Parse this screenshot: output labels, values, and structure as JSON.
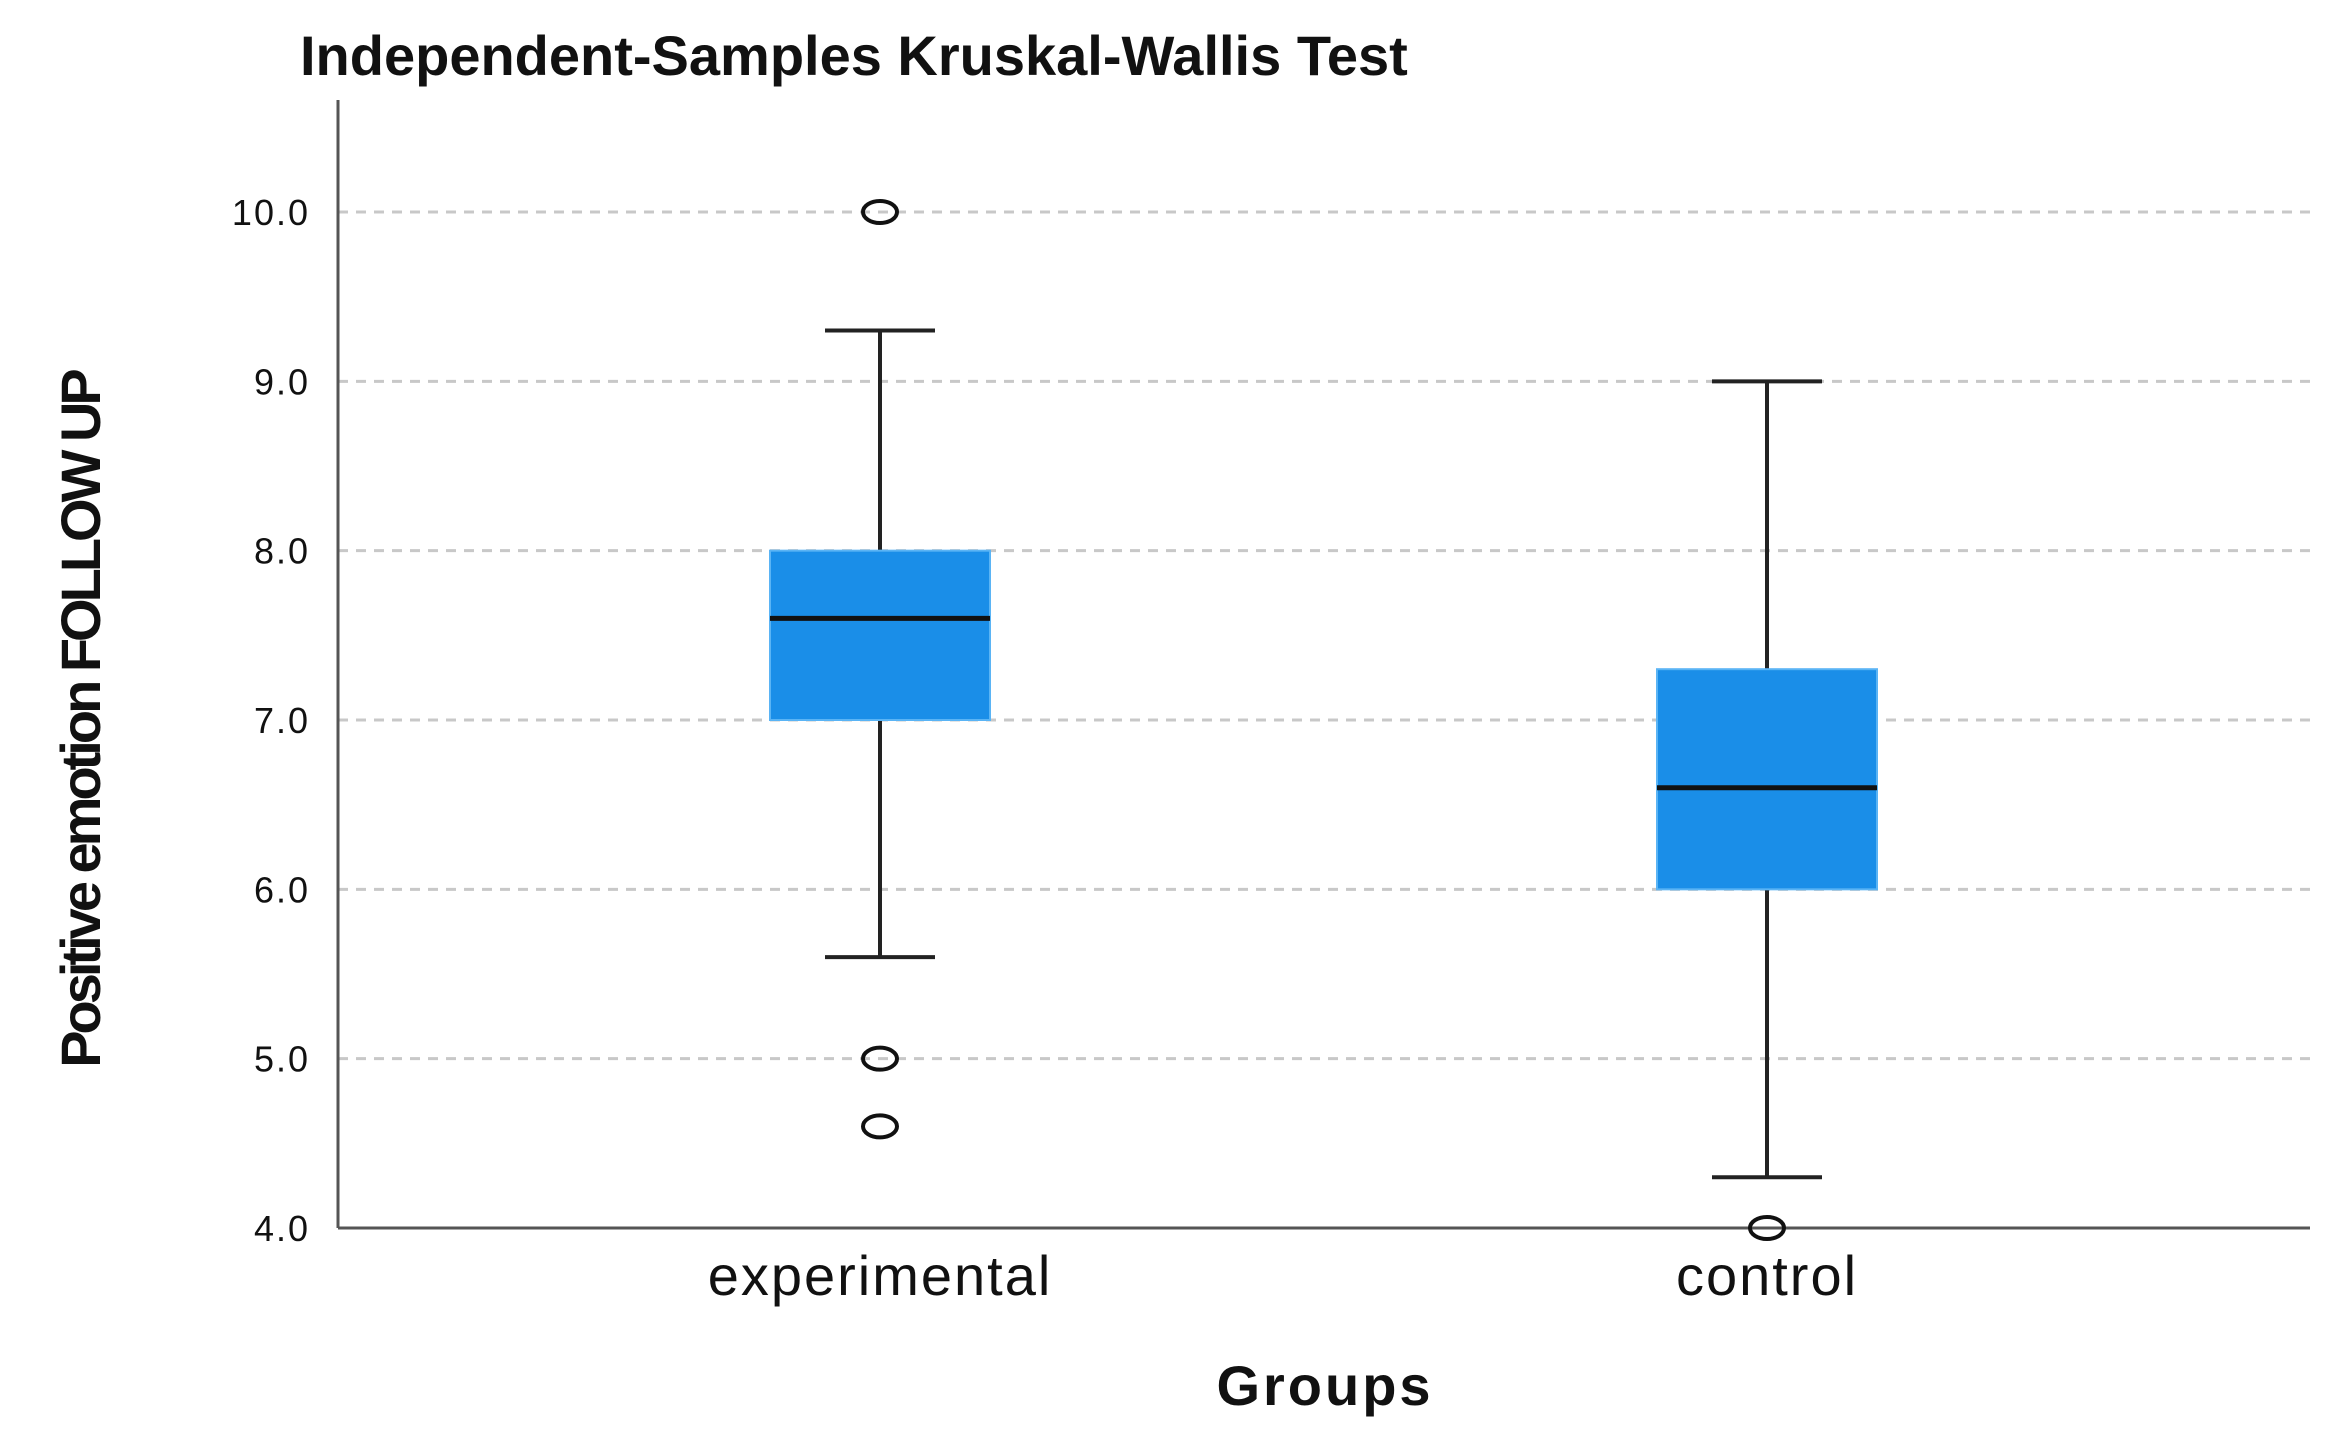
{
  "chart_data": {
    "type": "boxplot",
    "title": "Independent-Samples Kruskal-Wallis Test",
    "xlabel": "Groups",
    "ylabel": "Positive emotion FOLLOW UP",
    "ylim": [
      4.0,
      10.0
    ],
    "yticks": [
      "4.0",
      "5.0",
      "6.0",
      "7.0",
      "8.0",
      "9.0",
      "10.0"
    ],
    "grid": true,
    "box_color": "#1a8ee8",
    "groups": [
      {
        "category": "experimental",
        "whisker_low": 5.6,
        "q1": 7.0,
        "median": 7.6,
        "q3": 8.0,
        "whisker_high": 9.3,
        "outliers": [
          10.0,
          5.0,
          4.6
        ]
      },
      {
        "category": "control",
        "whisker_low": 4.3,
        "q1": 6.0,
        "median": 6.6,
        "q3": 7.3,
        "whisker_high": 9.0,
        "outliers": [
          4.0
        ]
      }
    ]
  }
}
